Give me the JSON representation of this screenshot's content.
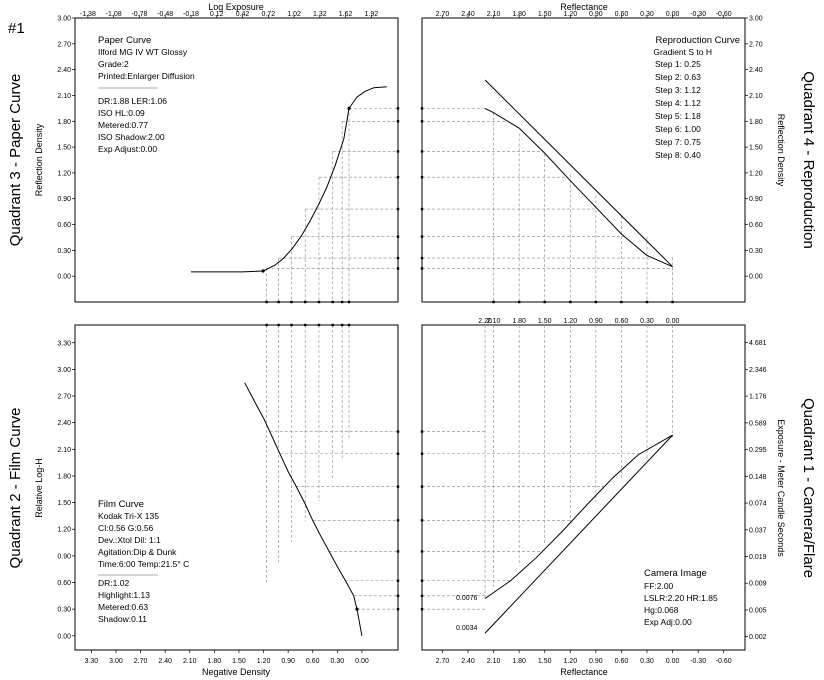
{
  "figure_number": "#1",
  "quadrant_labels": {
    "q3": "Quadrant 3 - Paper Curve",
    "q4": "Quadrant 4 - Reproduction",
    "q2": "Quadrant 2 - Film Curve",
    "q1": "Quadrant 1 - Camera/Flare"
  },
  "paper_info": {
    "title": "Paper Curve",
    "lines": [
      "Ilford MG IV WT  Glossy",
      "Grade:2",
      "Printed:Enlarger Diffusion",
      "DR:1.88  LER:1.06",
      "ISO HL:0.09",
      "Metered:0.77",
      "ISO Shadow:2.00",
      "Exp Adjust:0.00"
    ]
  },
  "repro_info": {
    "title": "Reproduction Curve",
    "lines": [
      "Gradient S to H",
      "Step 1: 0.25",
      "Step 2: 0.63",
      "Step 3: 1.12",
      "Step 4: 1.12",
      "Step 5: 1.18",
      "Step 6: 1.00",
      "Step 7: 0.75",
      "Step 8: 0.40"
    ]
  },
  "film_info": {
    "title": "Film Curve",
    "lines": [
      "Kodak Tri-X 135",
      "CI:0.56  G:0.56",
      "Dev.:Xtol  Dil: 1:1",
      "Agitation:Dip & Dunk",
      "Time:6:00  Temp:21.5° C",
      "DR:1.02",
      "Highlight:1.13",
      "Metered:0.63",
      "Shadow:0.11"
    ]
  },
  "camera_info": {
    "title": "Camera Image",
    "lines": [
      "FF:2.00",
      "LSLR:2.20 HR:1.85",
      "Hg:0.068",
      "Exp Adj:0.00"
    ]
  },
  "chart_data": [
    {
      "type": "line",
      "panel": "paper-curve",
      "x2label": "Log Exposure",
      "ylabel": "Reflection Density",
      "x_ticks": [
        "-1.38",
        "-1.08",
        "-0.78",
        "-0.48",
        "-0.18",
        "0.12",
        "0.42",
        "0.72",
        "1.02",
        "1.32",
        "1.62",
        "1.92"
      ],
      "y_ticks": [
        "0.00",
        "0.30",
        "0.60",
        "0.90",
        "1.20",
        "1.50",
        "1.80",
        "2.10",
        "2.40",
        "2.70",
        "3.00"
      ],
      "xlim": [
        -1.53,
        2.23
      ],
      "ylim": [
        -0.3,
        3.0
      ],
      "series": [
        {
          "x": [
            -0.18,
            0.12,
            0.42,
            0.66,
            0.72,
            0.8,
            0.9,
            1.0,
            1.1,
            1.2,
            1.3,
            1.4,
            1.5,
            1.6,
            1.66,
            1.75,
            1.85,
            1.95,
            2.1
          ],
          "y": [
            0.05,
            0.05,
            0.05,
            0.06,
            0.09,
            0.13,
            0.21,
            0.32,
            0.46,
            0.63,
            0.82,
            1.03,
            1.29,
            1.6,
            1.95,
            2.08,
            2.15,
            2.19,
            2.2
          ]
        }
      ],
      "steps_x": [
        0.7,
        0.84,
        0.99,
        1.15,
        1.31,
        1.47,
        1.58,
        1.66
      ],
      "steps_y": [
        0.09,
        0.21,
        0.46,
        0.78,
        1.15,
        1.45,
        1.8,
        1.95
      ]
    },
    {
      "type": "line",
      "panel": "reproduction-curve",
      "x2label": "Reflectance",
      "y2label": "Reflection Density",
      "x_ticks": [
        "2.70",
        "2.40",
        "2.10",
        "1.80",
        "1.50",
        "1.20",
        "0.90",
        "0.60",
        "0.30",
        "0.00",
        "-0.30",
        "-0.60"
      ],
      "y_ticks": [
        "0.00",
        "0.30",
        "0.60",
        "0.90",
        "1.20",
        "1.50",
        "1.80",
        "2.10",
        "2.40",
        "2.70",
        "3.00"
      ],
      "xlim": [
        2.94,
        -0.85
      ],
      "ylim": [
        -0.3,
        3.0
      ],
      "series": [
        {
          "x": [
            2.2,
            0.0
          ],
          "y": [
            2.28,
            0.11
          ]
        },
        {
          "x": [
            2.2,
            2.1,
            1.8,
            1.5,
            1.2,
            0.9,
            0.6,
            0.3,
            0.0
          ],
          "y": [
            1.95,
            1.9,
            1.72,
            1.43,
            1.11,
            0.8,
            0.49,
            0.24,
            0.11
          ]
        }
      ]
    },
    {
      "type": "line",
      "panel": "film-curve",
      "xlabel": "Negative Density",
      "ylabel": "Relative Log-H",
      "x_ticks": [
        "3.30",
        "3.00",
        "2.70",
        "2.40",
        "2.10",
        "1.80",
        "1.50",
        "1.20",
        "0.90",
        "0.60",
        "0.30",
        "0.00"
      ],
      "y_ticks": [
        "0.00",
        "0.30",
        "0.60",
        "0.90",
        "1.20",
        "1.50",
        "1.80",
        "2.10",
        "2.40",
        "2.70",
        "3.00",
        "3.30"
      ],
      "xlim": [
        3.5,
        -0.44
      ],
      "ylim": [
        -0.16,
        3.5
      ],
      "series": [
        {
          "x": [
            1.43,
            1.3,
            1.2,
            1.1,
            1.0,
            0.9,
            0.8,
            0.7,
            0.6,
            0.5,
            0.4,
            0.3,
            0.2,
            0.1,
            0.06,
            0.0
          ],
          "y": [
            2.85,
            2.62,
            2.45,
            2.25,
            2.05,
            1.85,
            1.68,
            1.5,
            1.3,
            1.12,
            0.95,
            0.78,
            0.62,
            0.45,
            0.3,
            0.0
          ]
        }
      ]
    },
    {
      "type": "line",
      "panel": "camera-flare",
      "xlabel": "Reflectance",
      "y2label": "Exposure - Meter Candle Seconds",
      "x_ticks": [
        "2.70",
        "2.40",
        "2.10",
        "1.80",
        "1.50",
        "1.20",
        "0.90",
        "0.60",
        "0.30",
        "0.00",
        "-0.30",
        "-0.60"
      ],
      "x2_ticks": [
        "2.20",
        "2.10",
        "1.80",
        "1.50",
        "1.20",
        "0.90",
        "0.60",
        "0.30",
        "0.00"
      ],
      "y2_ticks": [
        "0.002",
        "0.005",
        "0.009",
        "0.019",
        "0.037",
        "0.074",
        "0.148",
        "0.295",
        "0.589",
        "1.176",
        "2.346",
        "4.681"
      ],
      "xlim": [
        2.94,
        -0.85
      ],
      "ylim": [
        -0.16,
        3.5
      ],
      "annotations": [
        "0.0076",
        "0.0034"
      ],
      "series": [
        {
          "x": [
            2.2,
            0.0
          ],
          "y": [
            0.03,
            2.26
          ]
        },
        {
          "x": [
            2.2,
            1.9,
            1.6,
            1.3,
            1.0,
            0.7,
            0.4,
            0.0
          ],
          "y": [
            0.42,
            0.62,
            0.88,
            1.17,
            1.48,
            1.78,
            2.04,
            2.26
          ]
        }
      ]
    }
  ]
}
